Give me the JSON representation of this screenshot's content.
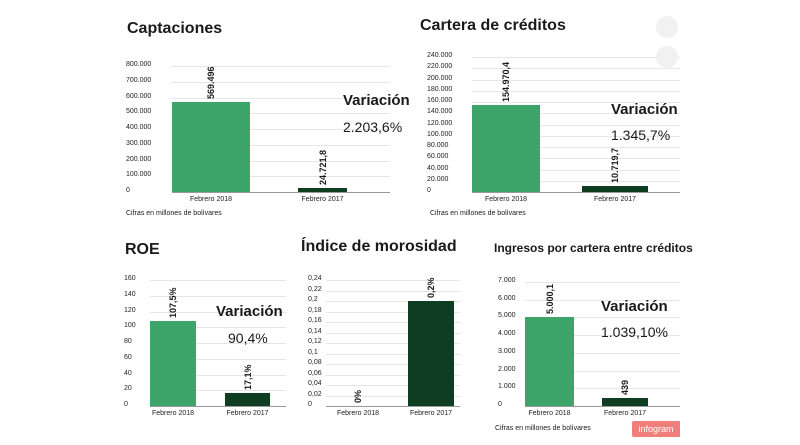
{
  "colors": {
    "light_bar": "#3ea56a",
    "dark_bar": "#0f3d22",
    "badge": "#f07f7b"
  },
  "badge": {
    "text": "infogram"
  },
  "chart_data": [
    {
      "type": "bar",
      "title": "Captaciones",
      "categories": [
        "Febrero 2018",
        "Febrero 2017"
      ],
      "values": [
        569496,
        24721.8
      ],
      "value_labels": [
        "569.496",
        "24.721,8"
      ],
      "ylim": [
        0,
        800000
      ],
      "yticks": [
        "0",
        "100.000",
        "200.000",
        "300.000",
        "400.000",
        "500.000",
        "600.000",
        "700.000",
        "800.000"
      ],
      "variation_title": "Variación",
      "variation_value": "2.203,6%",
      "note": "Cifras en millones de bolívares"
    },
    {
      "type": "bar",
      "title": "Cartera de créditos",
      "categories": [
        "Febrero 2018",
        "Febrero 2017"
      ],
      "values": [
        154970.4,
        10719.7
      ],
      "value_labels": [
        "154.970,4",
        "10.719,7"
      ],
      "ylim": [
        0,
        240000
      ],
      "yticks": [
        "0",
        "20.000",
        "40.000",
        "60.000",
        "80.000",
        "100.000",
        "120.000",
        "140.000",
        "160.000",
        "180.000",
        "200.000",
        "220.000",
        "240.000"
      ],
      "variation_title": "Variación",
      "variation_value": "1.345,7%",
      "note": "Cifras en millones de bolívares"
    },
    {
      "type": "bar",
      "title": "ROE",
      "categories": [
        "Febrero 2018",
        "Febrero 2017"
      ],
      "values": [
        107.5,
        17.1
      ],
      "value_labels": [
        "107,5%",
        "17,1%"
      ],
      "ylim": [
        0,
        160
      ],
      "yticks": [
        "0",
        "20",
        "40",
        "60",
        "80",
        "100",
        "120",
        "140",
        "160"
      ],
      "variation_title": "Variación",
      "variation_value": "90,4%"
    },
    {
      "type": "bar",
      "title": "Índice de morosidad",
      "categories": [
        "Febrero 2018",
        "Febrero 2017"
      ],
      "values": [
        0,
        0.2
      ],
      "value_labels": [
        "0%",
        "0,2%"
      ],
      "ylim": [
        0,
        0.24
      ],
      "yticks": [
        "0",
        "0,02",
        "0,04",
        "0,06",
        "0,08",
        "0,1",
        "0,12",
        "0,14",
        "0,16",
        "0,18",
        "0,2",
        "0,22",
        "0,24"
      ]
    },
    {
      "type": "bar",
      "title": "Ingresos por cartera entre créditos",
      "categories": [
        "Febrero 2018",
        "Febrero 2017"
      ],
      "values": [
        5000.1,
        439
      ],
      "value_labels": [
        "5.000,1",
        "439"
      ],
      "ylim": [
        0,
        7000
      ],
      "yticks": [
        "0",
        "1.000",
        "2.000",
        "3.000",
        "4.000",
        "5.000",
        "6.000",
        "7.000"
      ],
      "variation_title": "Variación",
      "variation_value": "1.039,10%",
      "note": "Cifras en millones de bolívares"
    }
  ]
}
